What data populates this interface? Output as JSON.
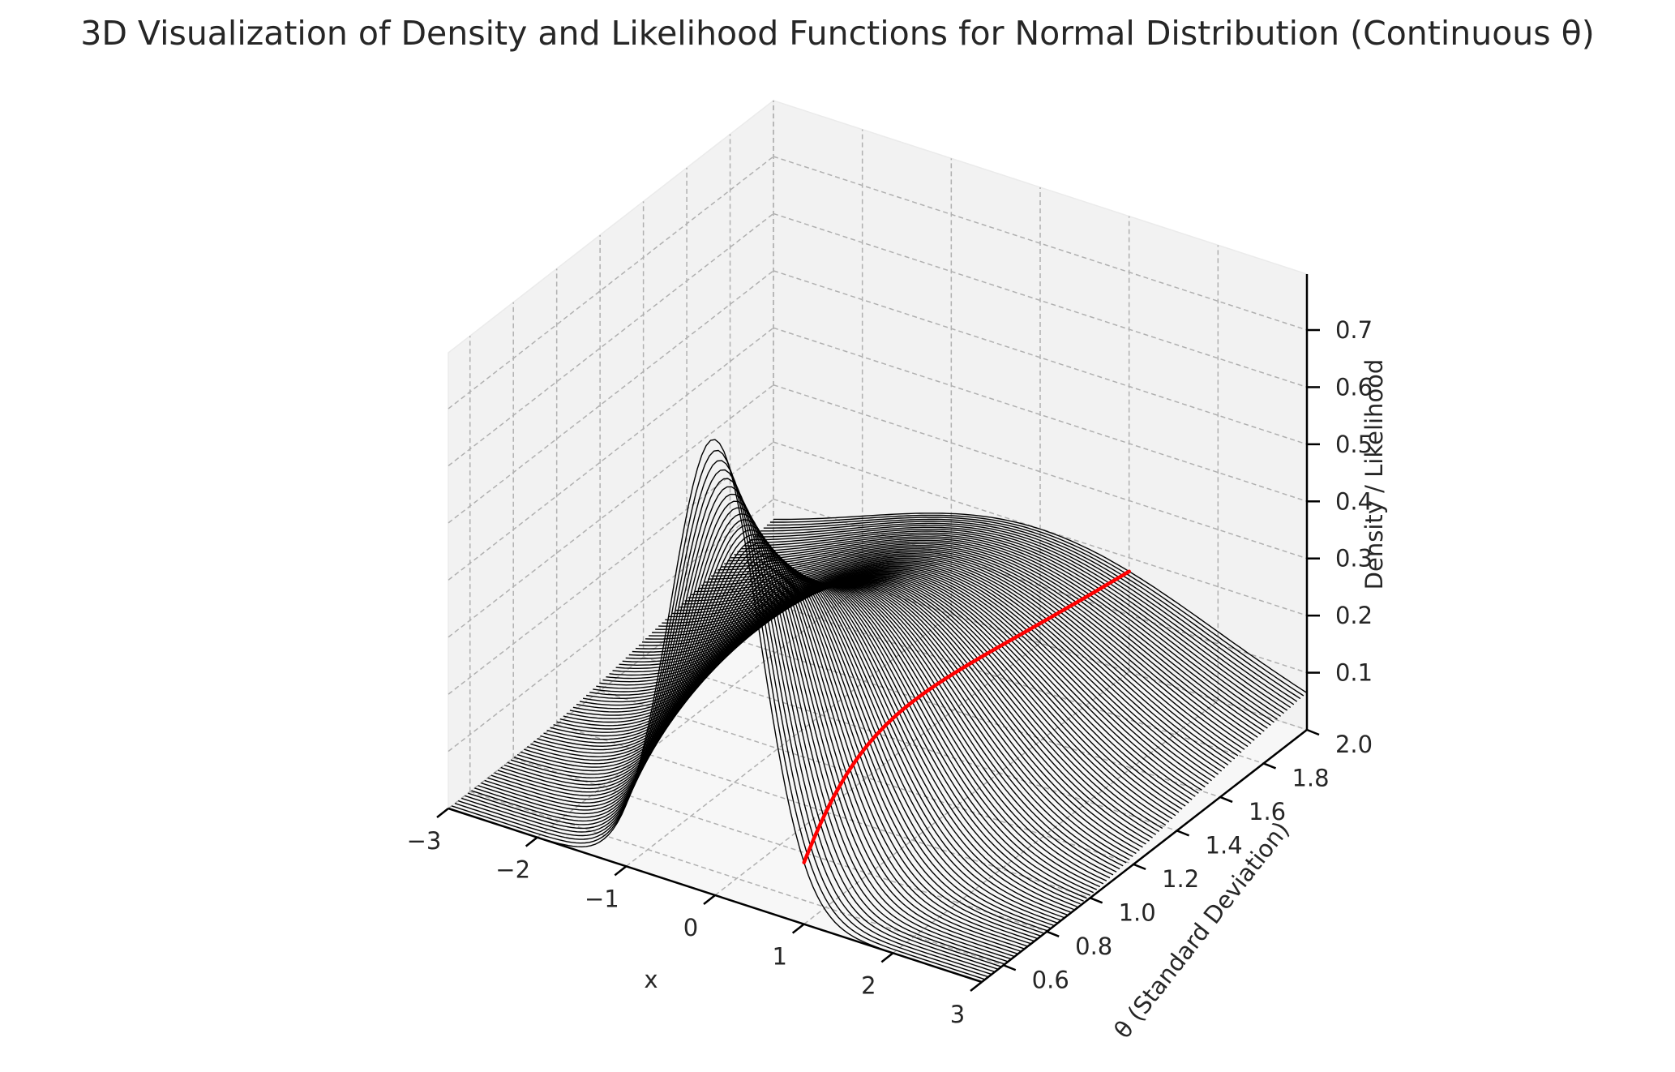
{
  "chart_data": {
    "type": "line",
    "subtype": "3d-line-waterfall",
    "title": "3D Visualization of Density and Likelihood Functions for Normal Distribution (Continuous θ)",
    "xlabel": "x",
    "ylabel": "θ (Standard Deviation)",
    "zlabel": "Density / Likelihood",
    "x_ticks": [
      "−3",
      "−2",
      "−1",
      "0",
      "1",
      "2",
      "3"
    ],
    "y_ticks": [
      "0.6",
      "0.8",
      "1.0",
      "1.2",
      "1.4",
      "1.6",
      "1.8",
      "2.0"
    ],
    "z_ticks": [
      "0.1",
      "0.2",
      "0.3",
      "0.4",
      "0.5",
      "0.6",
      "0.7"
    ],
    "xlim": [
      -3,
      3
    ],
    "ylim": [
      0.5,
      2.0
    ],
    "zlim": [
      0.0,
      0.798
    ],
    "grid": true,
    "series_count": 100,
    "series": [
      {
        "kind": "density curves",
        "function": "normal pdf, mean 0",
        "theta_range": [
          0.5,
          2.0
        ],
        "x_range": [
          -3,
          3
        ],
        "color": "#000000"
      },
      {
        "kind": "likelihood curve",
        "fixed_x": 1,
        "theta_range": [
          0.5,
          2.0
        ],
        "color": "#ff0000"
      }
    ]
  }
}
